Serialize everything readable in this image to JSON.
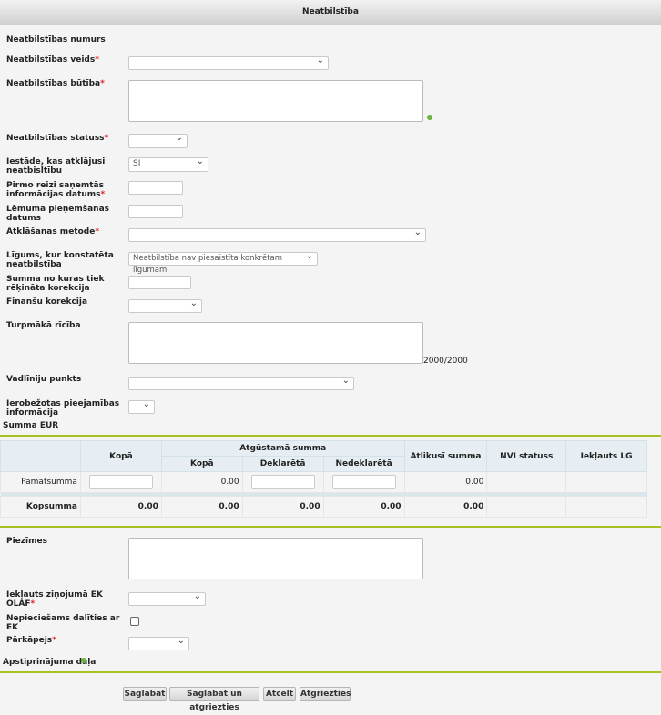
{
  "header": {
    "title": "Neatbilstība"
  },
  "fields": {
    "numurs": "Neatbilstības numurs",
    "veids": "Neatbilstības veids",
    "butiba": "Neatbilstības būtība",
    "statuss": "Neatbilstības statuss",
    "iestade": "Iestāde, kas atklājusi neatbisltību",
    "iestade_value": "SI",
    "pirmo": "Pirmo reizi saņemtās informācijas datums",
    "lemuma": "Lēmuma pieņemšanas datums",
    "metode": "Atklāšanas metode",
    "ligums": "Līgums, kur konstatēta neatbilstība",
    "ligums_value": "Neatbilstība nav piesaistīta konkrētam līgumam",
    "summa_no": "Summa no kuras tiek rēķināta korekcija",
    "finansu": "Finanšu korekcija",
    "turpmaka": "Turpmākā rīcība",
    "counter": "2000/2000",
    "vadliniju": "Vadlīniju punkts",
    "ierobezotas": "Ierobežotas pieejamības informācija",
    "summa_eur": "Summa EUR",
    "piezimes": "Piezīmes",
    "olaf": "Iekļauts ziņojumā EK OLAF",
    "dalities": "Nepieciešams dalīties ar EK",
    "parkapejs": "Pārkāpejs",
    "apstiprinajuma": "Apstiprinājuma daļa"
  },
  "required_mark": "*",
  "table": {
    "h_kopa": "Kopā",
    "h_atgustama": "Atgūstamā summa",
    "h_sub_kopa": "Kopā",
    "h_deklareta": "Deklarētā",
    "h_nedeklareta": "Nedeklarētā",
    "h_atlikusi": "Atlikusī summa",
    "h_nvi": "NVI statuss",
    "h_lg": "Iekļauts LG",
    "row_label": "Pamatsumma",
    "row_kopa": "0.00",
    "row_atlikusi": "0.00",
    "total_label": "Kopsumma",
    "totals": [
      "0.00",
      "0.00",
      "0.00",
      "0.00",
      "0.00"
    ]
  },
  "buttons": {
    "save": "Saglabāt",
    "save_return": "Saglabāt un atgriezties",
    "cancel": "Atcelt",
    "back": "Atgriezties"
  },
  "colors": {
    "accent": "#a5c31f",
    "required": "#e02020",
    "info": "#6cb33f"
  }
}
